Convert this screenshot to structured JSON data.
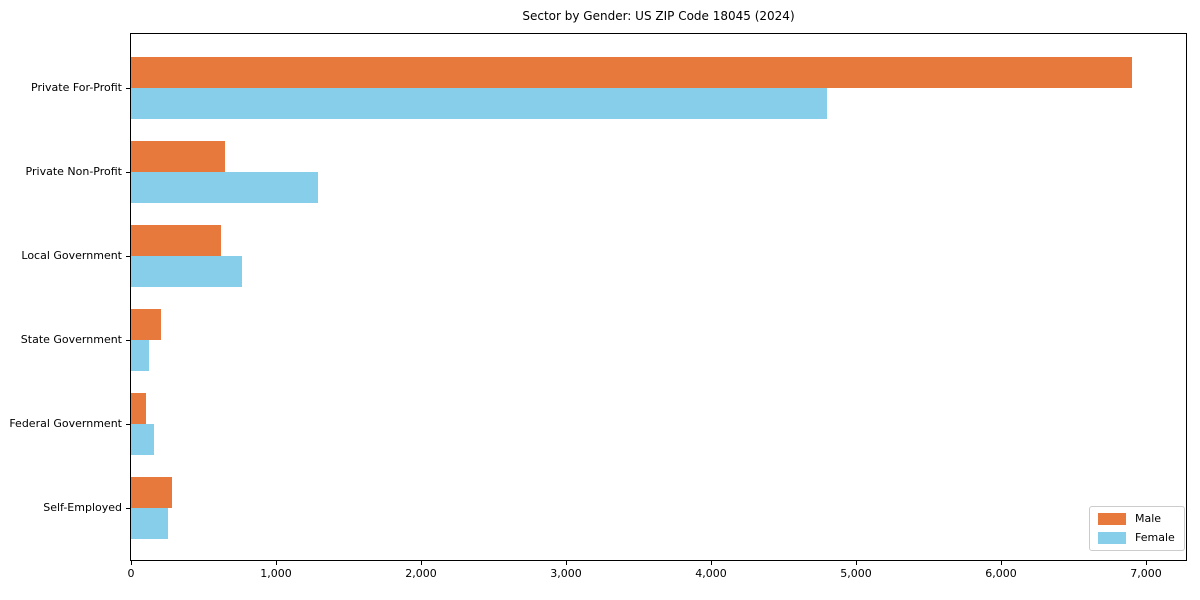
{
  "chart_data": {
    "type": "bar",
    "orientation": "horizontal",
    "title": "Sector by Gender: US ZIP Code 18045 (2024)",
    "xlabel": "",
    "ylabel": "",
    "categories": [
      "Private For-Profit",
      "Private Non-Profit",
      "Local Government",
      "State Government",
      "Federal Government",
      "Self-Employed"
    ],
    "series": [
      {
        "name": "Male",
        "color": "#e8793d",
        "values": [
          6900,
          650,
          620,
          205,
          105,
          280
        ]
      },
      {
        "name": "Female",
        "color": "#87ceeb",
        "values": [
          4800,
          1290,
          765,
          125,
          160,
          255
        ]
      }
    ],
    "xlim": [
      0,
      7275
    ],
    "xticks": [
      {
        "value": 0,
        "label": "0"
      },
      {
        "value": 1000,
        "label": "1,000"
      },
      {
        "value": 2000,
        "label": "2,000"
      },
      {
        "value": 3000,
        "label": "3,000"
      },
      {
        "value": 4000,
        "label": "4,000"
      },
      {
        "value": 5000,
        "label": "5,000"
      },
      {
        "value": 6000,
        "label": "6,000"
      },
      {
        "value": 7000,
        "label": "7,000"
      }
    ],
    "grid": false,
    "legend_position": "lower right",
    "spine_color": "#000000",
    "background_color": "#ffffff"
  }
}
